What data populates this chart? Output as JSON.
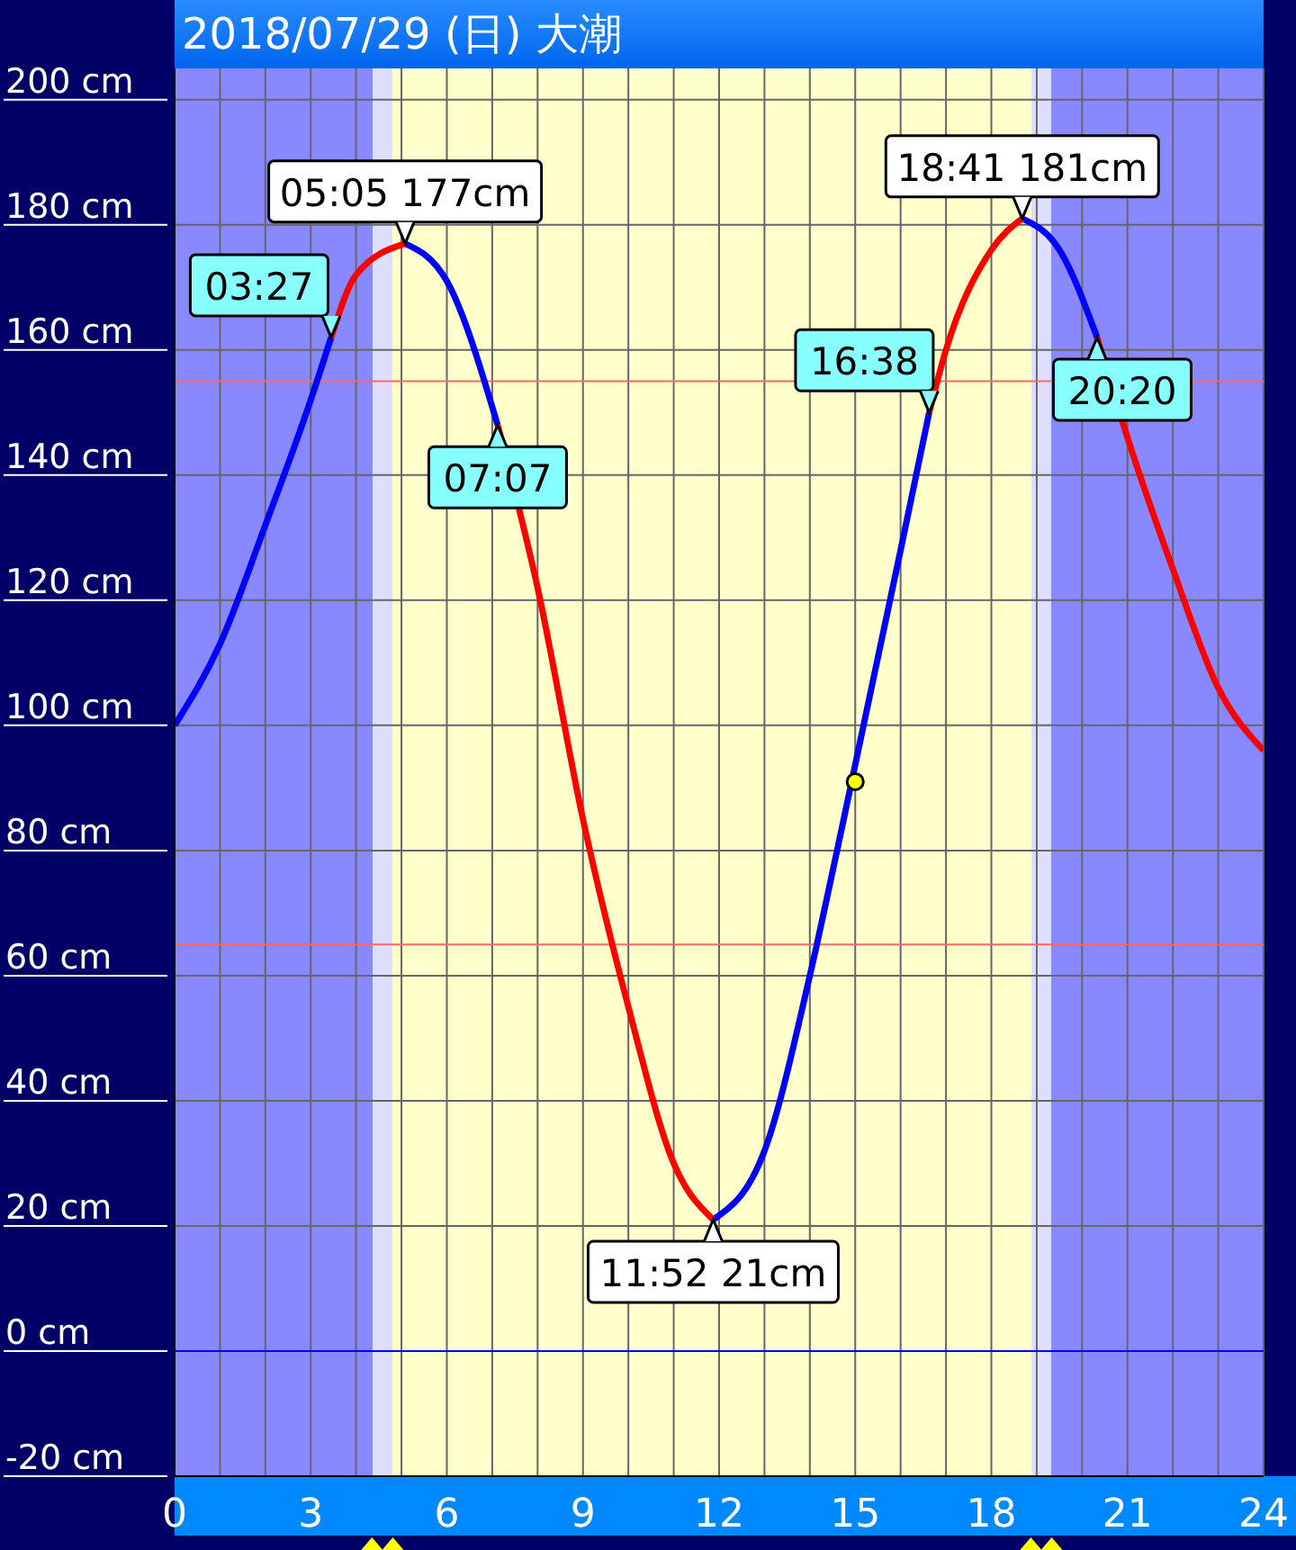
{
  "chart_data": {
    "type": "line",
    "title": "2018/07/29 (日) 大潮",
    "x": [
      0,
      1,
      2,
      3,
      3.45,
      4,
      5.08,
      6,
      7.12,
      8,
      9,
      10,
      11,
      11.87,
      13,
      14,
      14.6,
      16,
      16.63,
      17,
      18,
      18.68,
      19.5,
      20.33,
      21,
      22,
      23,
      24
    ],
    "series": [
      {
        "color": "#0000ff",
        "values": [
          100,
          113,
          132,
          152,
          162,
          null,
          177,
          171,
          148,
          null,
          null,
          null,
          null,
          21,
          32,
          60,
          80,
          128,
          150,
          null,
          null,
          181,
          176,
          162,
          null,
          null,
          null,
          null
        ]
      },
      {
        "color": "#ff0000",
        "values": [
          null,
          null,
          null,
          null,
          162,
          172,
          177,
          null,
          148,
          122,
          85,
          55,
          30,
          21,
          null,
          null,
          null,
          null,
          150,
          160,
          176,
          181,
          null,
          162,
          146,
          125,
          106,
          96
        ]
      },
      {
        "type": "scatter",
        "color": "#ffff00",
        "x": [
          15
        ],
        "values": [
          91
        ]
      }
    ],
    "xlim": [
      0,
      24
    ],
    "xticks": [
      0,
      {
        "value": 1,
        "label": null
      },
      {
        "value": 2,
        "label": null
      },
      3,
      {
        "value": 4,
        "label": null
      },
      {
        "value": 5,
        "label": null
      },
      6,
      {
        "value": 7,
        "label": null
      },
      {
        "value": 8,
        "label": null
      },
      9,
      {
        "value": 10,
        "label": null
      },
      {
        "value": 11,
        "label": null
      },
      12,
      {
        "value": 13,
        "label": null
      },
      {
        "value": 14,
        "label": null
      },
      15,
      {
        "value": 16,
        "label": null
      },
      {
        "value": 17,
        "label": null
      },
      18,
      {
        "value": 19,
        "label": null
      },
      {
        "value": 20,
        "label": null
      },
      21,
      {
        "value": 22,
        "label": null
      },
      {
        "value": 23,
        "label": null
      },
      24
    ],
    "ylim": [
      -20,
      205
    ],
    "yticks": [
      {
        "value": -20,
        "label": "-20 cm"
      },
      {
        "value": 0,
        "label": "0 cm"
      },
      {
        "value": 20,
        "label": "20 cm"
      },
      {
        "value": 40,
        "label": "40 cm"
      },
      {
        "value": 60,
        "label": "60 cm"
      },
      {
        "value": 80,
        "label": "80 cm"
      },
      {
        "value": 100,
        "label": "100 cm"
      },
      {
        "value": 120,
        "label": "120 cm"
      },
      {
        "value": 140,
        "label": "140 cm"
      },
      {
        "value": 160,
        "label": "160 cm"
      },
      {
        "value": 180,
        "label": "180 cm"
      },
      {
        "value": 200,
        "label": "200 cm"
      }
    ],
    "grid": true,
    "legend": false,
    "bands": [
      {
        "axis": "x",
        "from": 0,
        "to": 4.35,
        "color": "#8888ff"
      },
      {
        "axis": "x",
        "from": 4.35,
        "to": 4.81,
        "color": "#dedeff"
      },
      {
        "axis": "x",
        "from": 4.81,
        "to": 18.87,
        "color": "#ffffcc"
      },
      {
        "axis": "x",
        "from": 18.87,
        "to": 19.33,
        "color": "#dedeff"
      },
      {
        "axis": "x",
        "from": 19.33,
        "to": 24,
        "color": "#8888ff"
      }
    ],
    "ref_lines": [
      {
        "axis": "y",
        "value": 155,
        "color": "#ff6666"
      },
      {
        "axis": "y",
        "value": 65,
        "color": "#ff6666"
      },
      {
        "axis": "y",
        "value": 0,
        "color": "#0000ff"
      }
    ],
    "annotations": [
      {
        "text": "05:05 177cm",
        "x": 5.08,
        "y": 177
      },
      {
        "text": "11:52 21cm",
        "x": 11.87,
        "y": 21
      },
      {
        "text": "18:41 181cm",
        "x": 18.68,
        "y": 181
      },
      {
        "text": "03:27",
        "x": 3.45,
        "y": 162
      },
      {
        "text": "07:07",
        "x": 7.12,
        "y": 148
      },
      {
        "text": "16:38",
        "x": 16.63,
        "y": 150
      },
      {
        "text": "20:20",
        "x": 20.33,
        "y": 162
      }
    ]
  }
}
